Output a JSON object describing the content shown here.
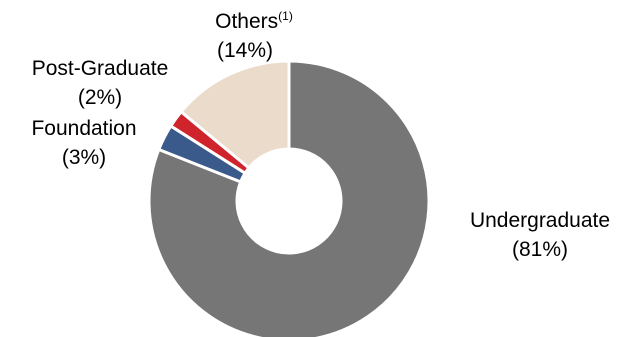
{
  "chart_data": {
    "type": "pie",
    "donut": true,
    "slices": [
      {
        "name": "Undergraduate",
        "pct_label": "(81%)",
        "value": 81,
        "color": "#767676"
      },
      {
        "name": "Foundation",
        "pct_label": "(3%)",
        "value": 3,
        "color": "#3a5a8c"
      },
      {
        "name": "Post-Graduate",
        "pct_label": "(2%)",
        "value": 2,
        "color": "#d0242c"
      },
      {
        "name": "Others",
        "name_sup": "(1)",
        "pct_label": "(14%)",
        "value": 14,
        "color": "#eadbca"
      }
    ]
  }
}
